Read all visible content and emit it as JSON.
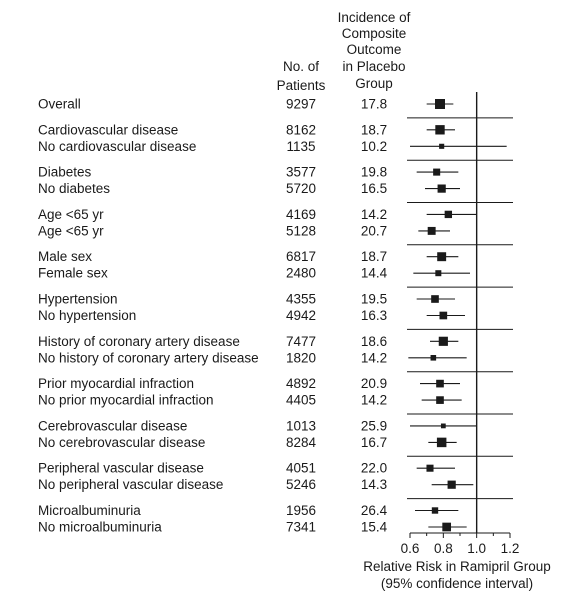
{
  "chart_data": {
    "type": "forest",
    "headers": {
      "patients": [
        "No. of",
        "Patients"
      ],
      "incidence": [
        "Incidence of",
        "Composite",
        "Outcome",
        "in Placebo",
        "Group"
      ]
    },
    "xlabel": [
      "Relative Risk in Ramipril Group",
      "(95% confidence interval)"
    ],
    "xlim": [
      0.6,
      1.2
    ],
    "xticks": [
      "0.6",
      "0.8",
      "1.0",
      "1.2"
    ],
    "reference_line": 1.0,
    "groups": [
      {
        "rows": [
          {
            "label": "Overall",
            "patients": "9297",
            "incidence": "17.8",
            "rr": 0.78,
            "lo": 0.7,
            "hi": 0.86,
            "weight": 1.0
          }
        ]
      },
      {
        "rows": [
          {
            "label": "Cardiovascular disease",
            "patients": "8162",
            "incidence": "18.7",
            "rr": 0.78,
            "lo": 0.7,
            "hi": 0.87,
            "weight": 0.85
          },
          {
            "label": "No cardiovascular disease",
            "patients": "1135",
            "incidence": "10.2",
            "rr": 0.79,
            "lo": 0.6,
            "hi": 1.18,
            "weight": 0.15
          }
        ]
      },
      {
        "rows": [
          {
            "label": "Diabetes",
            "patients": "3577",
            "incidence": "19.8",
            "rr": 0.76,
            "lo": 0.64,
            "hi": 0.89,
            "weight": 0.4
          },
          {
            "label": "No diabetes",
            "patients": "5720",
            "incidence": "16.5",
            "rr": 0.79,
            "lo": 0.69,
            "hi": 0.9,
            "weight": 0.6
          }
        ]
      },
      {
        "rows": [
          {
            "label": "Age <65 yr",
            "patients": "4169",
            "incidence": "14.2",
            "rr": 0.83,
            "lo": 0.7,
            "hi": 1.0,
            "weight": 0.45
          },
          {
            "label": "Age <65 yr",
            "patients": "5128",
            "incidence": "20.7",
            "rr": 0.73,
            "lo": 0.65,
            "hi": 0.84,
            "weight": 0.55
          }
        ]
      },
      {
        "rows": [
          {
            "label": "Male sex",
            "patients": "6817",
            "incidence": "18.7",
            "rr": 0.79,
            "lo": 0.7,
            "hi": 0.89,
            "weight": 0.75
          },
          {
            "label": "Female sex",
            "patients": "2480",
            "incidence": "14.4",
            "rr": 0.77,
            "lo": 0.62,
            "hi": 0.96,
            "weight": 0.25
          }
        ]
      },
      {
        "rows": [
          {
            "label": "Hypertension",
            "patients": "4355",
            "incidence": "19.5",
            "rr": 0.75,
            "lo": 0.64,
            "hi": 0.87,
            "weight": 0.5
          },
          {
            "label": "No hypertension",
            "patients": "4942",
            "incidence": "16.3",
            "rr": 0.8,
            "lo": 0.7,
            "hi": 0.93,
            "weight": 0.5
          }
        ]
      },
      {
        "rows": [
          {
            "label": "History of coronary artery disease",
            "patients": "7477",
            "incidence": "18.6",
            "rr": 0.8,
            "lo": 0.72,
            "hi": 0.89,
            "weight": 0.8
          },
          {
            "label": "No history of coronary artery disease",
            "patients": "1820",
            "incidence": "14.2",
            "rr": 0.74,
            "lo": 0.59,
            "hi": 0.94,
            "weight": 0.2
          }
        ]
      },
      {
        "rows": [
          {
            "label": "Prior myocardial infraction",
            "patients": "4892",
            "incidence": "20.9",
            "rr": 0.78,
            "lo": 0.66,
            "hi": 0.9,
            "weight": 0.5
          },
          {
            "label": "No prior myocardial infraction",
            "patients": "4405",
            "incidence": "14.2",
            "rr": 0.78,
            "lo": 0.67,
            "hi": 0.91,
            "weight": 0.5
          }
        ]
      },
      {
        "rows": [
          {
            "label": "Cerebrovascular disease",
            "patients": "1013",
            "incidence": "25.9",
            "rr": 0.8,
            "lo": 0.6,
            "hi": 1.0,
            "weight": 0.12
          },
          {
            "label": "No cerebrovascular disease",
            "patients": "8284",
            "incidence": "16.7",
            "rr": 0.79,
            "lo": 0.71,
            "hi": 0.88,
            "weight": 0.88
          }
        ]
      },
      {
        "rows": [
          {
            "label": "Peripheral vascular disease",
            "patients": "4051",
            "incidence": "22.0",
            "rr": 0.72,
            "lo": 0.64,
            "hi": 0.87,
            "weight": 0.4
          },
          {
            "label": "No peripheral vascular disease",
            "patients": "5246",
            "incidence": "14.3",
            "rr": 0.85,
            "lo": 0.73,
            "hi": 0.98,
            "weight": 0.6
          }
        ]
      },
      {
        "rows": [
          {
            "label": "Microalbuminuria",
            "patients": "1956",
            "incidence": "26.4",
            "rr": 0.75,
            "lo": 0.63,
            "hi": 0.89,
            "weight": 0.3
          },
          {
            "label": "No microalbuminuria",
            "patients": "7341",
            "incidence": "15.4",
            "rr": 0.82,
            "lo": 0.71,
            "hi": 0.94,
            "weight": 0.7
          }
        ]
      }
    ]
  }
}
